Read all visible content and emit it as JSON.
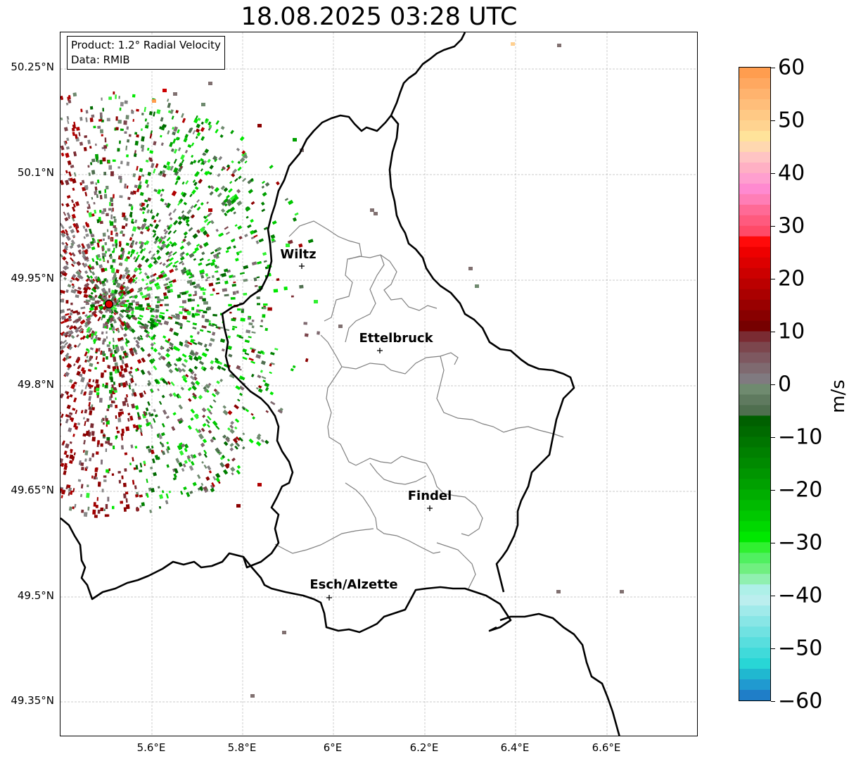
{
  "title": "18.08.2025 03:28 UTC",
  "info": {
    "product": "Product: 1.2° Radial Velocity",
    "data": "Data: RMIB"
  },
  "lat_ticks": [
    "50.25°N",
    "50.1°N",
    "49.95°N",
    "49.8°N",
    "49.65°N",
    "49.5°N",
    "49.35°N"
  ],
  "lon_ticks": [
    "5.6°E",
    "5.8°E",
    "6°E",
    "6.2°E",
    "6.4°E",
    "6.6°E"
  ],
  "cities": [
    {
      "name": "Wiltz"
    },
    {
      "name": "Ettelbruck"
    },
    {
      "name": "Findel"
    },
    {
      "name": "Esch/Alzette"
    }
  ],
  "colorbar": {
    "label": "m/s",
    "ticks": [
      "60",
      "50",
      "40",
      "30",
      "20",
      "10",
      "0",
      "−10",
      "−20",
      "−30",
      "−40",
      "−50",
      "−60"
    ],
    "range": [
      -60,
      60
    ]
  },
  "colors": {
    "border": "#000000",
    "canton": "#808080",
    "grid": "#bbbbbb",
    "radar_site": "#e00000"
  }
}
